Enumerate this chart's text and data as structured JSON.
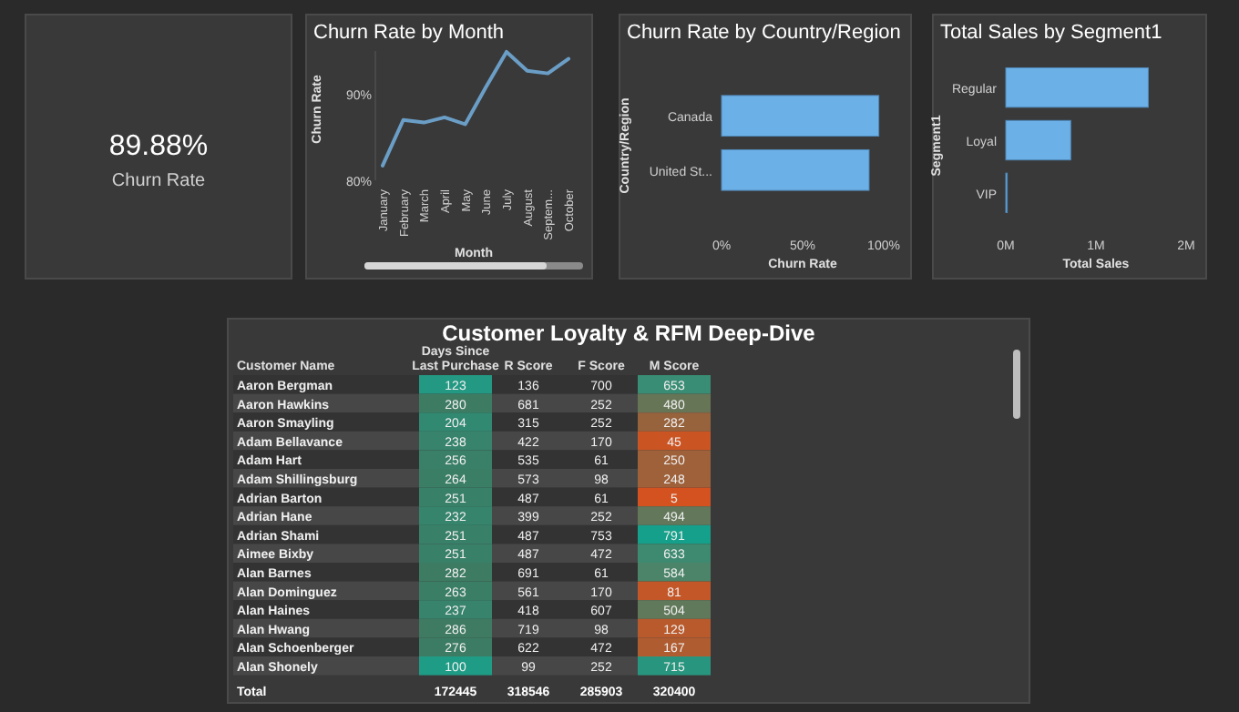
{
  "chart_data": [
    {
      "type": "other",
      "annotations": [
        "89.88%",
        "Churn Rate"
      ]
    },
    {
      "type": "line",
      "title": "Churn Rate by Month",
      "xlabel": "Month",
      "ylabel": "Churn Rate",
      "categories": [
        "January",
        "February",
        "March",
        "April",
        "May",
        "June",
        "July",
        "August",
        "Septem...",
        "October"
      ],
      "series": [
        {
          "color": "#6b9ec6",
          "values": [
            81.7,
            87.0,
            86.7,
            87.3,
            86.5,
            90.8,
            94.9,
            92.7,
            92.4,
            94.1
          ]
        }
      ],
      "ylim": [
        80,
        95
      ],
      "yticks": [
        {
          "value": 80,
          "label": "80%"
        },
        {
          "value": 90,
          "label": "90%"
        }
      ],
      "marker": "none"
    },
    {
      "type": "bar",
      "orientation": "horizontal",
      "title": "Churn Rate by Country/Region",
      "xlabel": "Churn Rate",
      "ylabel": "Country/Region",
      "categories": [
        "Canada",
        "United St..."
      ],
      "values": [
        97,
        91
      ],
      "color": "#6cb0e8",
      "xlim": [
        0,
        100
      ],
      "xticks": [
        {
          "value": 0,
          "label": "0%"
        },
        {
          "value": 50,
          "label": "50%"
        },
        {
          "value": 100,
          "label": "100%"
        }
      ]
    },
    {
      "type": "bar",
      "orientation": "horizontal",
      "title": "Total Sales by Segment1",
      "xlabel": "Total Sales",
      "ylabel": "Segment1",
      "categories": [
        "Regular",
        "Loyal",
        "VIP"
      ],
      "values": [
        1.58,
        0.72,
        0.01
      ],
      "color": "#6cb0e8",
      "xlim": [
        0,
        2
      ],
      "xticks": [
        {
          "value": 0,
          "label": "0M"
        },
        {
          "value": 1,
          "label": "1M"
        },
        {
          "value": 2,
          "label": "2M"
        }
      ]
    },
    {
      "type": "heatmap",
      "title": "Customer Loyalty & RFM Deep-Dive",
      "ylabel": "Customer Name",
      "data_labels": true,
      "categories": [
        "Days Since Last Purchase",
        "R Score",
        "F Score",
        "M Score"
      ],
      "y_categories": [
        "Aaron Bergman",
        "Aaron Hawkins",
        "Aaron Smayling",
        "Adam Bellavance",
        "Adam Hart",
        "Adam Shillingsburg",
        "Adrian Barton",
        "Adrian Hane",
        "Adrian Shami",
        "Aimee Bixby",
        "Alan Barnes",
        "Alan Dominguez",
        "Alan Haines",
        "Alan Hwang",
        "Alan Schoenberger",
        "Alan Shonely"
      ],
      "cells": [
        [
          123,
          136,
          700,
          653
        ],
        [
          280,
          681,
          252,
          480
        ],
        [
          204,
          315,
          252,
          282
        ],
        [
          238,
          422,
          170,
          45
        ],
        [
          256,
          535,
          61,
          250
        ],
        [
          264,
          573,
          98,
          248
        ],
        [
          251,
          487,
          61,
          5
        ],
        [
          232,
          399,
          252,
          494
        ],
        [
          251,
          487,
          753,
          791
        ],
        [
          251,
          487,
          472,
          633
        ],
        [
          282,
          691,
          61,
          584
        ],
        [
          263,
          561,
          170,
          81
        ],
        [
          237,
          418,
          607,
          504
        ],
        [
          286,
          719,
          98,
          129
        ],
        [
          276,
          622,
          472,
          167
        ],
        [
          100,
          99,
          252,
          715
        ]
      ],
      "annotations": [
        "Total",
        "172445",
        "318546",
        "285903",
        "320400"
      ]
    }
  ]
}
